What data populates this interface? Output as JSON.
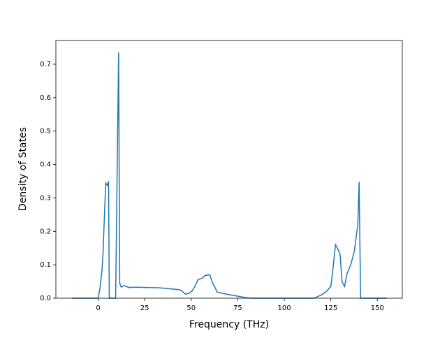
{
  "chart_data": {
    "type": "line",
    "x_label": "Frequency (THz)",
    "y_label": "Density of States",
    "x": [
      -14,
      0,
      1,
      2,
      2.6,
      3.4,
      4.1,
      4.9,
      5.6,
      6,
      8.2,
      9.4,
      11,
      11.6,
      12.4,
      14,
      16.5,
      20,
      25,
      33,
      41,
      44,
      45.7,
      47,
      49,
      50.5,
      52,
      53.6,
      56,
      57.4,
      60,
      61.5,
      63,
      64,
      69,
      75,
      79,
      82,
      116,
      120,
      122.6,
      125,
      126,
      127.5,
      129,
      130,
      131,
      132.4,
      133.5,
      135.7,
      137.6,
      139.5,
      140.2,
      141,
      155
    ],
    "series": [
      {
        "color": "#1f77b4",
        "values": [
          0,
          0,
          0.03,
          0.08,
          0.13,
          0.25,
          0.345,
          0.337,
          0.35,
          0,
          0,
          0,
          0.735,
          0.045,
          0.033,
          0.038,
          0.032,
          0.033,
          0.032,
          0.031,
          0.027,
          0.025,
          0.018,
          0.012,
          0.015,
          0.022,
          0.035,
          0.055,
          0.06,
          0.068,
          0.07,
          0.045,
          0.03,
          0.018,
          0.012,
          0.006,
          0.002,
          0,
          0,
          0.01,
          0.02,
          0.035,
          0.08,
          0.16,
          0.145,
          0.13,
          0.05,
          0.035,
          0.07,
          0.1,
          0.14,
          0.22,
          0.348,
          0,
          0
        ]
      }
    ],
    "xlim": [
      -22.7,
      163.4
    ],
    "ylim": [
      0,
      0.771
    ],
    "xticks": [
      0,
      25,
      50,
      75,
      100,
      125,
      150
    ],
    "yticks": [
      {
        "value": 0,
        "label": "0.0"
      },
      0.1,
      0.2,
      0.3,
      0.4,
      0.5,
      0.6,
      0.7
    ],
    "grid": false
  }
}
